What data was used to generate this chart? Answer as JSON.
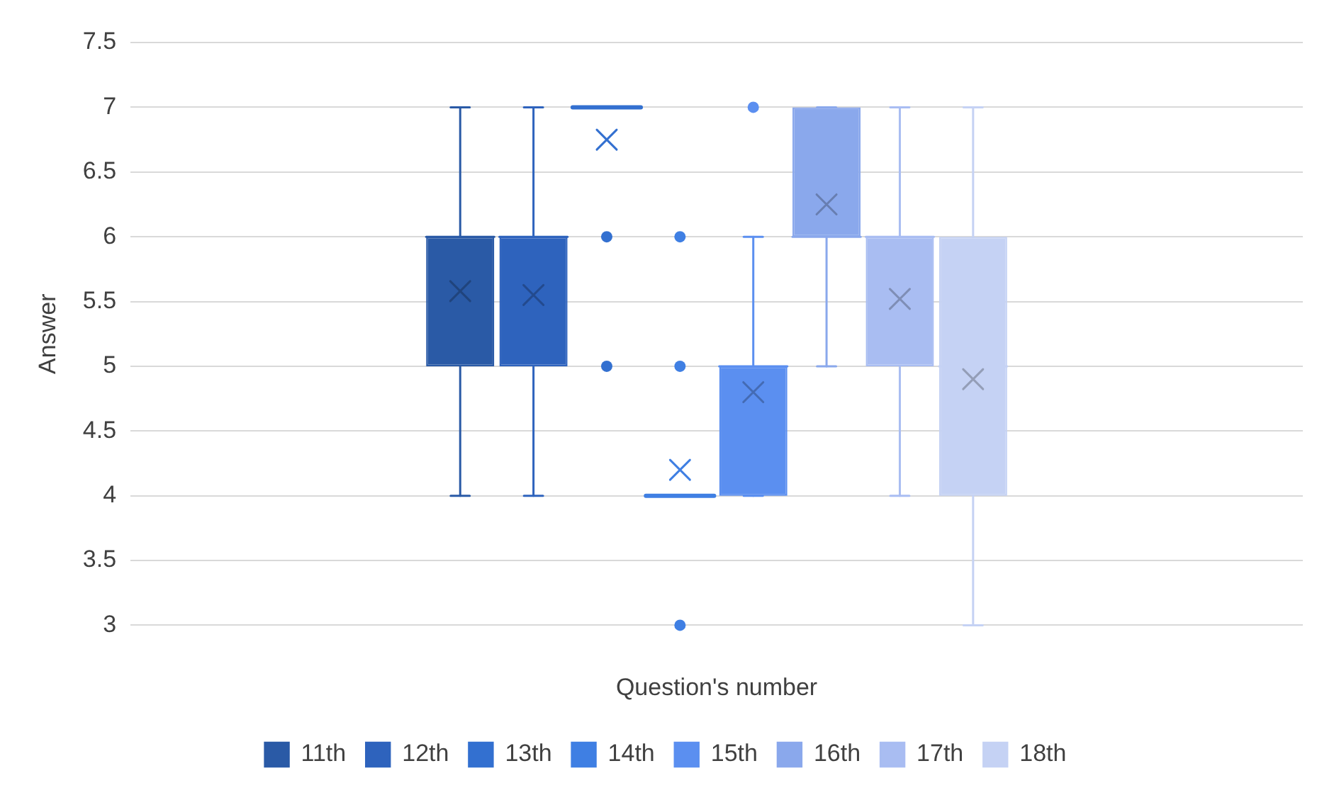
{
  "chart_data": {
    "type": "box",
    "xlabel": "Question's number",
    "ylabel": "Answer",
    "categories": [
      null
    ],
    "ylim": [
      3,
      7.5
    ],
    "yticks": [
      3,
      3.5,
      4,
      4.5,
      5,
      5.5,
      6,
      6.5,
      7,
      7.5
    ],
    "grid": "y",
    "legend": "bottom",
    "series": [
      {
        "name": "11th",
        "color": "#2a5aa6",
        "boxes": [
          {
            "low": 4,
            "q1": 5,
            "median": 6,
            "q3": 6,
            "high": 7,
            "mean": 5.58
          }
        ]
      },
      {
        "name": "12th",
        "color": "#2e63bd",
        "boxes": [
          {
            "low": 4,
            "q1": 5,
            "median": 6,
            "q3": 6,
            "high": 7,
            "mean": 5.55
          }
        ]
      },
      {
        "name": "13th",
        "color": "#3370d0",
        "boxes": [
          {
            "low": 7,
            "q1": 7,
            "median": 7,
            "q3": 7,
            "high": 7,
            "mean": 6.75,
            "outliers": [
              6,
              5
            ]
          }
        ]
      },
      {
        "name": "14th",
        "color": "#3f7fe3",
        "boxes": [
          {
            "low": 4,
            "q1": 4,
            "median": 4,
            "q3": 4,
            "high": 4,
            "mean": 4.2,
            "outliers": [
              6,
              5,
              3
            ]
          }
        ]
      },
      {
        "name": "15th",
        "color": "#5b8ff0",
        "boxes": [
          {
            "low": 4,
            "q1": 4,
            "median": 5,
            "q3": 5,
            "high": 6,
            "mean": 4.8,
            "outliers": [
              7
            ]
          }
        ]
      },
      {
        "name": "16th",
        "color": "#8aa8ec",
        "boxes": [
          {
            "low": 5,
            "q1": 6,
            "median": 6,
            "q3": 7,
            "high": 7,
            "mean": 6.25
          }
        ]
      },
      {
        "name": "17th",
        "color": "#a9bdf2",
        "boxes": [
          {
            "low": 4,
            "q1": 5,
            "median": 6,
            "q3": 6,
            "high": 7,
            "mean": 5.52
          }
        ]
      },
      {
        "name": "18th",
        "color": "#c5d2f4",
        "boxes": [
          {
            "low": 3,
            "q1": 4,
            "median": 5,
            "q3": 6,
            "high": 7,
            "mean": 4.9
          }
        ]
      }
    ]
  }
}
